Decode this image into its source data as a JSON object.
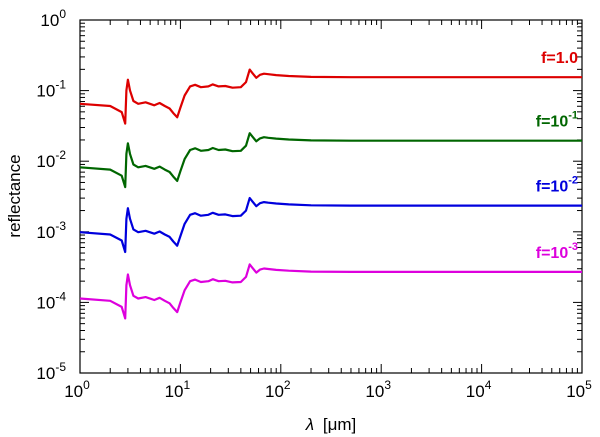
{
  "chart_data": {
    "type": "line",
    "title": "",
    "xlabel": "[μm]",
    "xlabel_symbol": "λ",
    "ylabel": "reflectance",
    "xscale": "log",
    "yscale": "log",
    "xlim": [
      1,
      100000
    ],
    "ylim": [
      1e-05,
      1
    ],
    "grid": false,
    "legend": "inline labels at right",
    "x_ticks": [
      {
        "value": 1,
        "base": "10",
        "exp": "0"
      },
      {
        "value": 10,
        "base": "10",
        "exp": "1"
      },
      {
        "value": 100,
        "base": "10",
        "exp": "2"
      },
      {
        "value": 1000,
        "base": "10",
        "exp": "3"
      },
      {
        "value": 10000,
        "base": "10",
        "exp": "4"
      },
      {
        "value": 100000,
        "base": "10",
        "exp": "5"
      }
    ],
    "y_ticks": [
      {
        "value": 1,
        "base": "10",
        "exp": "0"
      },
      {
        "value": 0.1,
        "base": "10",
        "exp": "-1"
      },
      {
        "value": 0.01,
        "base": "10",
        "exp": "-2"
      },
      {
        "value": 0.001,
        "base": "10",
        "exp": "-3"
      },
      {
        "value": 0.0001,
        "base": "10",
        "exp": "-4"
      },
      {
        "value": 1e-05,
        "base": "10",
        "exp": "-5"
      }
    ],
    "shape": {
      "x": [
        1,
        2,
        2.6,
        2.82,
        2.9,
        3.0,
        3.15,
        3.4,
        3.8,
        4.5,
        5.5,
        6.2,
        7.0,
        7.8,
        8.5,
        9.3,
        10.0,
        11.0,
        12.5,
        14.0,
        16.0,
        19.0,
        21.0,
        24.0,
        28.0,
        33.0,
        40.0,
        45.0,
        49.0,
        52.0,
        57.0,
        62.0,
        68.0,
        75.0,
        90.0,
        120.0,
        200.0,
        500.0,
        1000.0,
        10000.0,
        100000.0
      ],
      "rel": [
        0.42,
        0.39,
        0.32,
        0.22,
        0.65,
        0.92,
        0.65,
        0.46,
        0.42,
        0.44,
        0.4,
        0.43,
        0.39,
        0.36,
        0.31,
        0.27,
        0.37,
        0.55,
        0.74,
        0.78,
        0.72,
        0.74,
        0.79,
        0.74,
        0.75,
        0.71,
        0.72,
        0.85,
        1.28,
        1.15,
        0.98,
        1.08,
        1.12,
        1.1,
        1.07,
        1.04,
        1.01,
        1.0,
        1.0,
        1.0,
        1.0
      ]
    },
    "series": [
      {
        "name": "f=1.0",
        "label_base": "f=1.0",
        "label_exp": "",
        "plateau": 0.155,
        "color": "#dd0000"
      },
      {
        "name": "f=10^-1",
        "label_base": "f=10",
        "label_exp": "-1",
        "plateau": 0.0195,
        "color": "#006600"
      },
      {
        "name": "f=10^-2",
        "label_base": "f=10",
        "label_exp": "-2",
        "plateau": 0.00235,
        "color": "#0000dd"
      },
      {
        "name": "f=10^-3",
        "label_base": "f=10",
        "label_exp": "-3",
        "plateau": 0.00027,
        "color": "#dd00dd"
      }
    ]
  }
}
